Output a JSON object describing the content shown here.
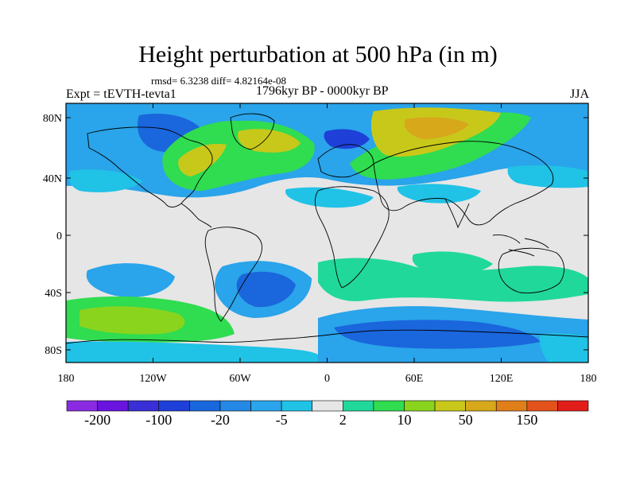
{
  "title": "Height perturbation at 500 hPa (in m)",
  "stats": "rmsd= 6.3238 diff= 4.82164e-08",
  "experiment": "Expt = tEVTH-tevta1",
  "period": "1796kyr BP - 0000kyr BP",
  "season": "JJA",
  "axes": {
    "lat_ticks": [
      "80N",
      "40N",
      "0",
      "40S",
      "80S"
    ],
    "lon_ticks": [
      "180",
      "120W",
      "60W",
      "0",
      "60E",
      "120E",
      "180"
    ]
  },
  "colorbar": {
    "colors": [
      "#8a2be2",
      "#6a14e0",
      "#3a2fd6",
      "#1e40d8",
      "#1a66dc",
      "#2488e4",
      "#2aa4ea",
      "#20c2e6",
      "#e6e6e6",
      "#20d89a",
      "#30dc50",
      "#8ad41e",
      "#c8c81a",
      "#d6a81a",
      "#e07e1a",
      "#e2521a",
      "#e21e1a"
    ],
    "labels": [
      "-200",
      "-100",
      "-20",
      "-5",
      "2",
      "10",
      "50",
      "150"
    ]
  },
  "field_colors": {
    "neutral": "#e6e6e6",
    "light_blue": "#2aa4ea",
    "mid_blue": "#1a66dc",
    "dark_blue": "#1e40d8",
    "cyan": "#20c2e6",
    "teal_green": "#20d89a",
    "green": "#30dc50",
    "yellow_green": "#8ad41e",
    "yellow": "#c8c81a",
    "orange": "#d6a81a"
  }
}
